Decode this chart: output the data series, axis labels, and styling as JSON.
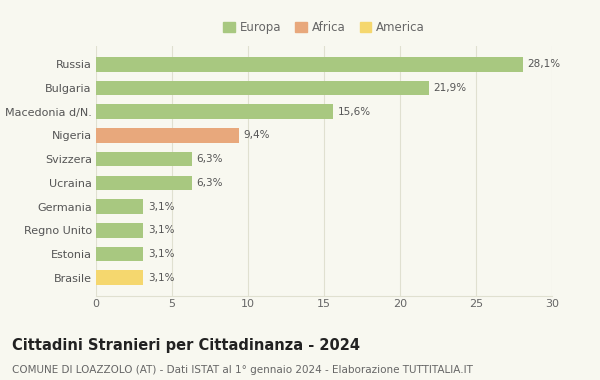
{
  "categories": [
    "Brasile",
    "Estonia",
    "Regno Unito",
    "Germania",
    "Ucraina",
    "Svizzera",
    "Nigeria",
    "Macedonia d/N.",
    "Bulgaria",
    "Russia"
  ],
  "values": [
    3.1,
    3.1,
    3.1,
    3.1,
    6.3,
    6.3,
    9.4,
    15.6,
    21.9,
    28.1
  ],
  "labels": [
    "3,1%",
    "3,1%",
    "3,1%",
    "3,1%",
    "6,3%",
    "6,3%",
    "9,4%",
    "15,6%",
    "21,9%",
    "28,1%"
  ],
  "colors": [
    "#f5d76e",
    "#a8c880",
    "#a8c880",
    "#a8c880",
    "#a8c880",
    "#a8c880",
    "#e8a87c",
    "#a8c880",
    "#a8c880",
    "#a8c880"
  ],
  "legend_labels": [
    "Europa",
    "Africa",
    "America"
  ],
  "legend_colors": [
    "#a8c880",
    "#e8a87c",
    "#f5d76e"
  ],
  "title": "Cittadini Stranieri per Cittadinanza - 2024",
  "subtitle": "COMUNE DI LOAZZOLO (AT) - Dati ISTAT al 1° gennaio 2024 - Elaborazione TUTTITALIA.IT",
  "xlim": [
    0,
    30
  ],
  "xticks": [
    0,
    5,
    10,
    15,
    20,
    25,
    30
  ],
  "background_color": "#f8f8f0",
  "grid_color": "#e0e0d0",
  "bar_height": 0.62,
  "title_fontsize": 10.5,
  "subtitle_fontsize": 7.5,
  "label_fontsize": 7.5,
  "tick_fontsize": 8,
  "legend_fontsize": 8.5
}
